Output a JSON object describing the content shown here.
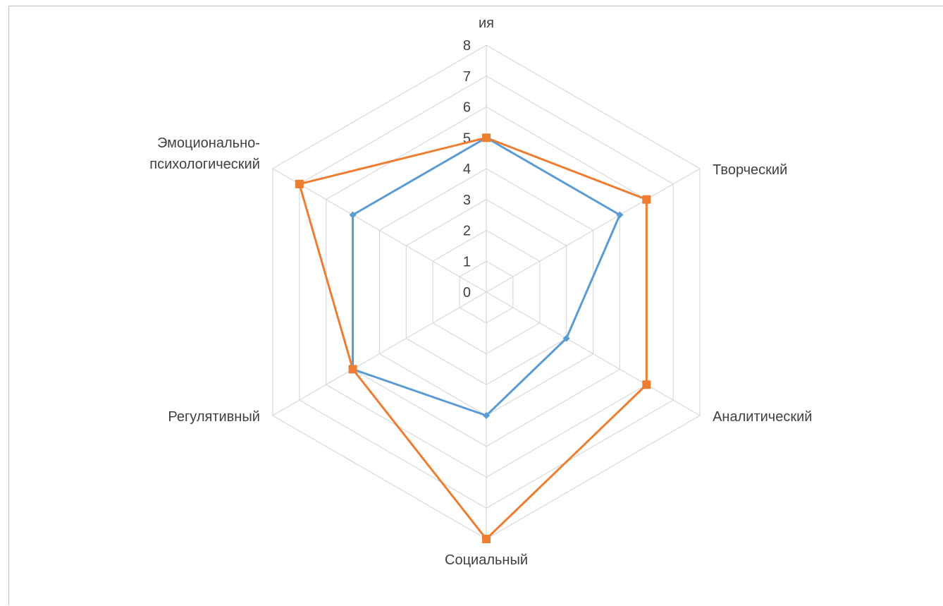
{
  "chart_data": {
    "type": "radar",
    "title": "",
    "categories": [
      [
        "ия"
      ],
      [
        "Творческий"
      ],
      [
        "Аналитический"
      ],
      [
        "Социальный"
      ],
      [
        "Регулятивный"
      ],
      [
        "Эмоционально-",
        "психологический"
      ]
    ],
    "r_ticks": [
      "0",
      "1",
      "2",
      "3",
      "4",
      "5",
      "6",
      "7",
      "8"
    ],
    "rlim": [
      0,
      8
    ],
    "grid": true,
    "legend": "none",
    "series": [
      {
        "color": "#5b9bd5",
        "marker": "diamond",
        "values": [
          5,
          5,
          3,
          4,
          5,
          5
        ]
      },
      {
        "color": "#ed7d31",
        "marker": "square",
        "values": [
          5,
          6,
          6,
          8,
          5,
          7
        ]
      }
    ],
    "grid_color": "#d9d9d9"
  }
}
